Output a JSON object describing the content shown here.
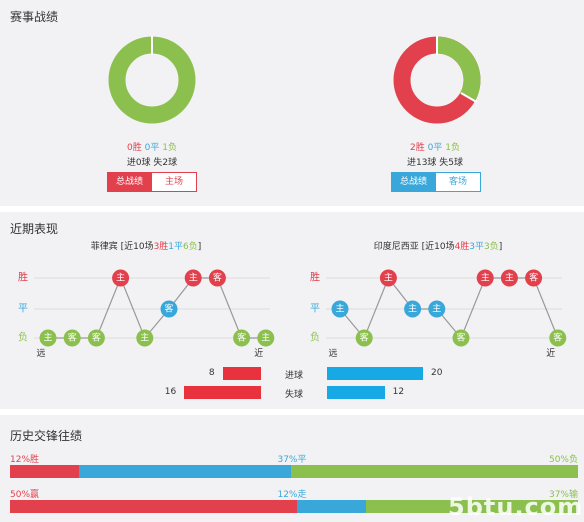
{
  "sections": {
    "record_title": "赛事战绩",
    "recent_title": "近期表现",
    "history_title": "历史交锋往绩"
  },
  "colors": {
    "win": "#e2404c",
    "draw": "#3aa7db",
    "loss": "#8cc04e",
    "grid": "#dcdcdc"
  },
  "left": {
    "donut": {
      "win": 0,
      "draw": 0,
      "loss": 1
    },
    "win": "0胜",
    "draw": "0平",
    "loss": "1负",
    "goals": "进0球 失2球",
    "tab_active": "总战绩",
    "tab_other": "主场"
  },
  "right": {
    "donut": {
      "win": 2,
      "draw": 0,
      "loss": 1
    },
    "win": "2胜",
    "draw": "0平",
    "loss": "1负",
    "goals": "进13球 失5球",
    "tab_active": "总战绩",
    "tab_other": "客场"
  },
  "recent": {
    "row_labels": {
      "win": "胜",
      "draw": "平",
      "loss": "负"
    },
    "far": "远",
    "near": "近",
    "home_marker": "主",
    "away_marker": "客",
    "left": {
      "team": "菲律宾",
      "pre": "[近10场",
      "w": "3胜",
      "d": "1平",
      "l": "6负",
      "post": "]",
      "matches": [
        {
          "r": "L",
          "v": "主"
        },
        {
          "r": "L",
          "v": "客"
        },
        {
          "r": "L",
          "v": "客"
        },
        {
          "r": "W",
          "v": "主"
        },
        {
          "r": "L",
          "v": "主"
        },
        {
          "r": "D",
          "v": "客"
        },
        {
          "r": "W",
          "v": "主"
        },
        {
          "r": "W",
          "v": "客"
        },
        {
          "r": "L",
          "v": "客"
        },
        {
          "r": "L",
          "v": "主"
        }
      ]
    },
    "right": {
      "team": "印度尼西亚",
      "pre": "[近10场",
      "w": "4胜",
      "d": "3平",
      "l": "3负",
      "post": "]",
      "matches": [
        {
          "r": "D",
          "v": "主"
        },
        {
          "r": "L",
          "v": "客"
        },
        {
          "r": "W",
          "v": "主"
        },
        {
          "r": "D",
          "v": "主"
        },
        {
          "r": "D",
          "v": "主"
        },
        {
          "r": "L",
          "v": "客"
        },
        {
          "r": "W",
          "v": "主"
        },
        {
          "r": "W",
          "v": "主"
        },
        {
          "r": "W",
          "v": "客"
        },
        {
          "r": "L",
          "v": "客"
        }
      ]
    }
  },
  "goals_compare": {
    "scored_label": "进球",
    "conceded_label": "失球",
    "left_scored": 8,
    "left_conceded": 16,
    "right_scored": 20,
    "right_conceded": 12,
    "left_color": "#e8323e",
    "right_color": "#16a9e6"
  },
  "history": {
    "row1": {
      "win_label": "12%胜",
      "draw_label": "37%平",
      "loss_label": "50%负",
      "win": 12,
      "draw": 37,
      "loss": 50
    },
    "row2": {
      "win_label": "50%赢",
      "draw_label": "12%走",
      "loss_label": "37%输",
      "win": 50,
      "draw": 12,
      "loss": 37
    }
  },
  "watermark": "5btu.com"
}
